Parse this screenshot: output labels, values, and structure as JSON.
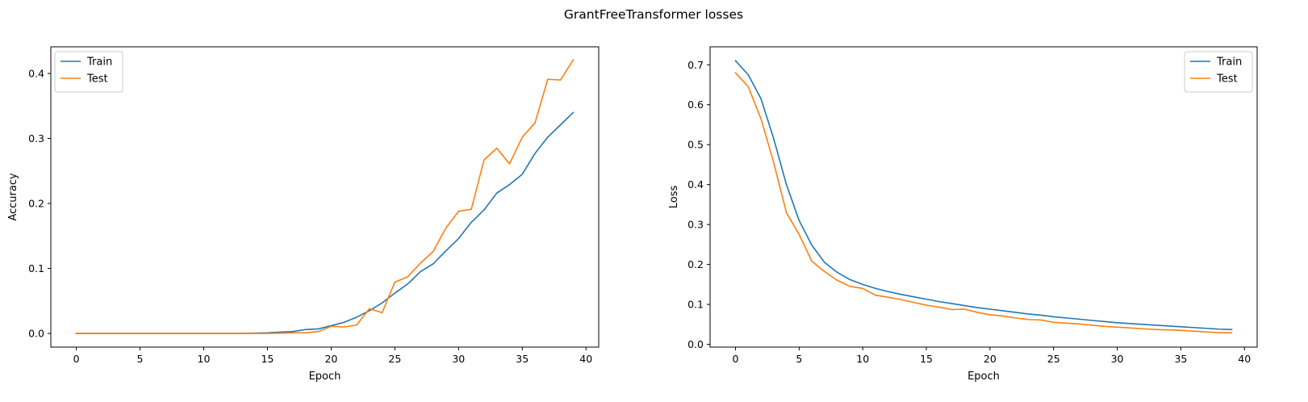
{
  "figure": {
    "title": "GrantFreeTransformer losses"
  },
  "colors": {
    "train": "#1f77b4",
    "test": "#ff7f0e"
  },
  "chart_data": [
    {
      "type": "line",
      "title": "",
      "xlabel": "Epoch",
      "ylabel": "Accuracy",
      "xlim": [
        -2,
        41
      ],
      "ylim": [
        -0.021,
        0.441
      ],
      "xticks": [
        0,
        5,
        10,
        15,
        20,
        25,
        30,
        35,
        40
      ],
      "yticks": [
        0.0,
        0.1,
        0.2,
        0.3,
        0.4
      ],
      "ytick_labels": [
        "0.0",
        "0.1",
        "0.2",
        "0.3",
        "0.4"
      ],
      "legend_position": "top-left",
      "grid": false,
      "x": [
        0,
        1,
        2,
        3,
        4,
        5,
        6,
        7,
        8,
        9,
        10,
        11,
        12,
        13,
        14,
        15,
        16,
        17,
        18,
        19,
        20,
        21,
        22,
        23,
        24,
        25,
        26,
        27,
        28,
        29,
        30,
        31,
        32,
        33,
        34,
        35,
        36,
        37,
        38,
        39
      ],
      "series": [
        {
          "name": "Train",
          "color": "#1f77b4",
          "values": [
            0.0,
            0.0,
            0.0,
            0.0,
            0.0,
            0.0,
            0.0,
            0.0,
            0.0,
            0.0,
            0.0,
            0.0,
            0.0,
            0.0,
            0.0005,
            0.001,
            0.002,
            0.003,
            0.006,
            0.007,
            0.012,
            0.017,
            0.025,
            0.035,
            0.047,
            0.062,
            0.076,
            0.095,
            0.107,
            0.127,
            0.146,
            0.171,
            0.19,
            0.216,
            0.229,
            0.245,
            0.277,
            0.302,
            0.321,
            0.34
          ]
        },
        {
          "name": "Test",
          "color": "#ff7f0e",
          "values": [
            0.0,
            0.0,
            0.0,
            0.0,
            0.0,
            0.0,
            0.0,
            0.0,
            0.0,
            0.0,
            0.0,
            0.0,
            0.0,
            0.0,
            0.0,
            0.0,
            0.0005,
            0.001,
            0.001,
            0.003,
            0.011,
            0.01,
            0.013,
            0.038,
            0.032,
            0.079,
            0.087,
            0.108,
            0.126,
            0.162,
            0.188,
            0.191,
            0.267,
            0.285,
            0.261,
            0.302,
            0.324,
            0.391,
            0.39,
            0.421
          ]
        }
      ]
    },
    {
      "type": "line",
      "title": "",
      "xlabel": "Epoch",
      "ylabel": "Loss",
      "xlim": [
        -2,
        41
      ],
      "ylim": [
        -0.007,
        0.745
      ],
      "xticks": [
        0,
        5,
        10,
        15,
        20,
        25,
        30,
        35,
        40
      ],
      "yticks": [
        0.0,
        0.1,
        0.2,
        0.3,
        0.4,
        0.5,
        0.6,
        0.7
      ],
      "ytick_labels": [
        "0.0",
        "0.1",
        "0.2",
        "0.3",
        "0.4",
        "0.5",
        "0.6",
        "0.7"
      ],
      "legend_position": "top-right",
      "grid": false,
      "x": [
        0,
        1,
        2,
        3,
        4,
        5,
        6,
        7,
        8,
        9,
        10,
        11,
        12,
        13,
        14,
        15,
        16,
        17,
        18,
        19,
        20,
        21,
        22,
        23,
        24,
        25,
        26,
        27,
        28,
        29,
        30,
        31,
        32,
        33,
        34,
        35,
        36,
        37,
        38,
        39
      ],
      "series": [
        {
          "name": "Train",
          "color": "#1f77b4",
          "values": [
            0.71,
            0.675,
            0.615,
            0.515,
            0.4,
            0.31,
            0.248,
            0.205,
            0.18,
            0.162,
            0.15,
            0.14,
            0.132,
            0.125,
            0.119,
            0.113,
            0.107,
            0.102,
            0.097,
            0.092,
            0.088,
            0.084,
            0.08,
            0.076,
            0.073,
            0.069,
            0.066,
            0.063,
            0.06,
            0.057,
            0.054,
            0.052,
            0.05,
            0.048,
            0.046,
            0.044,
            0.042,
            0.04,
            0.038,
            0.037
          ]
        },
        {
          "name": "Test",
          "color": "#ff7f0e",
          "values": [
            0.68,
            0.645,
            0.565,
            0.455,
            0.33,
            0.275,
            0.208,
            0.182,
            0.16,
            0.145,
            0.14,
            0.123,
            0.118,
            0.112,
            0.105,
            0.098,
            0.093,
            0.087,
            0.088,
            0.08,
            0.074,
            0.071,
            0.066,
            0.062,
            0.061,
            0.055,
            0.053,
            0.051,
            0.048,
            0.045,
            0.043,
            0.041,
            0.039,
            0.037,
            0.036,
            0.035,
            0.033,
            0.031,
            0.029,
            0.029
          ]
        }
      ]
    }
  ]
}
